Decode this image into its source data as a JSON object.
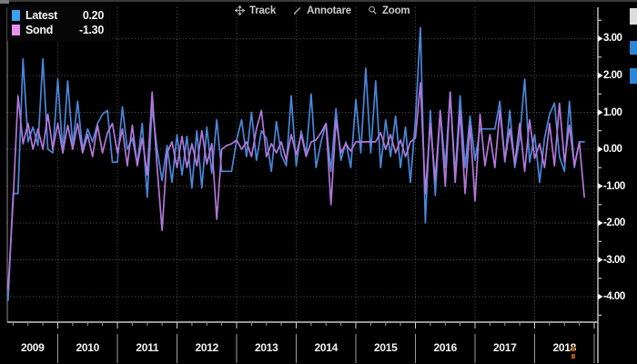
{
  "toolbar": {
    "items": [
      {
        "label": "Track",
        "icon": "move-icon"
      },
      {
        "label": "Annotare",
        "icon": "pencil-icon"
      },
      {
        "label": "Zoom",
        "icon": "magnifier-icon"
      }
    ]
  },
  "legend": {
    "items": [
      {
        "label": "Latest",
        "value": "0.20",
        "color": "#3aa0f2"
      },
      {
        "label": "Sond",
        "value": "-1.30",
        "color": "#e690ef"
      }
    ]
  },
  "colors": {
    "background": "#000000",
    "grid": "#5a5a5a",
    "axis": "#c8c8c8",
    "text": "#ffffff",
    "latest_line": "#4a86d8",
    "sond_line": "#b277d9"
  },
  "chart_data": {
    "type": "line",
    "title": "",
    "xlabel": "",
    "ylabel": "",
    "x_unit": "month",
    "x_start": "2009-03",
    "x_end": "2018-11",
    "start_month_offset": 10,
    "x_tick_labels": [
      "2009",
      "2010",
      "2011",
      "2012",
      "2013",
      "2014",
      "2015",
      "2016",
      "2017",
      "2018"
    ],
    "y_ticks": [
      3,
      2,
      1,
      0,
      -1,
      -2,
      -3,
      -4
    ],
    "y_tick_labels": [
      "3.00",
      "2.00",
      "1.00",
      "0.00",
      "-1.00",
      "-2.00",
      "-3.00",
      "-4.00"
    ],
    "y_minor_ticks": [
      3.5,
      2.5,
      1.5,
      0.5,
      -0.5,
      -1.5,
      -2.5,
      -3.5,
      -4.5
    ],
    "ylim": [
      -4.69,
      3.85
    ],
    "grid": "dotted",
    "legend_position": "top-left",
    "series": [
      {
        "name": "Latest",
        "last_value": 0.2,
        "color": "#4a86d8",
        "values": [
          -4.1,
          -1.2,
          -1.2,
          2.45,
          0.2,
          0.6,
          0.1,
          2.45,
          0.0,
          -0.1,
          1.9,
          -0.1,
          1.85,
          0.1,
          1.3,
          0.0,
          0.55,
          0.2,
          0.7,
          0.95,
          1.05,
          -0.35,
          -0.35,
          1.15,
          0.0,
          0.3,
          -0.4,
          0.7,
          -1.3,
          1.15,
          0.0,
          -0.85,
          0.1,
          -0.9,
          0.4,
          -0.7,
          0.35,
          -1.05,
          0.5,
          -1.05,
          0.6,
          -0.65,
          0.8,
          -0.6,
          -0.6,
          -0.6,
          0.25,
          0.8,
          -0.2,
          1.0,
          -0.3,
          0.5,
          0.3,
          -0.6,
          0.75,
          -0.15,
          -0.45,
          1.45,
          -0.45,
          0.5,
          -0.15,
          1.5,
          -0.5,
          0.2,
          0.7,
          -0.6,
          1.1,
          -0.3,
          0.2,
          -0.5,
          1.35,
          -0.1,
          2.2,
          -0.1,
          1.85,
          -0.5,
          0.8,
          -0.2,
          0.9,
          -0.5,
          0.6,
          -0.9,
          0.8,
          3.3,
          -2.0,
          1.05,
          -1.25,
          1.05,
          -0.5,
          1.55,
          -0.7,
          1.45,
          -0.5,
          0.9,
          -0.3,
          0.55,
          0.55,
          0.55,
          0.55,
          1.3,
          -0.35,
          1.05,
          -0.5,
          0.3,
          1.9,
          -0.35,
          0.4,
          -0.9,
          0.3,
          0.95,
          1.25,
          -0.2,
          -0.6,
          1.3,
          -0.5,
          0.2,
          0.2
        ]
      },
      {
        "name": "Sond",
        "last_value": -1.3,
        "color": "#b277d9",
        "values": [
          -3.8,
          -1.4,
          1.45,
          0.15,
          0.7,
          0.0,
          0.55,
          0.0,
          0.95,
          0.0,
          0.7,
          -0.1,
          0.65,
          0.0,
          0.7,
          -0.1,
          0.4,
          -0.2,
          0.65,
          -0.1,
          0.45,
          0.7,
          -0.1,
          0.55,
          -0.45,
          0.65,
          -0.45,
          0.3,
          -0.7,
          1.55,
          -0.5,
          -2.2,
          -0.1,
          0.2,
          -0.5,
          0.35,
          -0.5,
          0.15,
          -0.45,
          0.5,
          -0.4,
          0.15,
          -1.9,
          0.0,
          0.1,
          0.15,
          0.25,
          0.0,
          0.2,
          -0.2,
          0.55,
          1.05,
          -0.2,
          0.15,
          -0.1,
          0.2,
          -0.3,
          0.4,
          -0.15,
          0.4,
          -0.2,
          0.2,
          0.25,
          0.45,
          0.7,
          -1.5,
          0.8,
          -0.1,
          0.15,
          -0.05,
          0.2,
          0.2,
          0.2,
          0.2,
          0.2,
          0.45,
          0.0,
          0.4,
          -0.1,
          0.25,
          -0.2,
          0.2,
          0.3,
          1.8,
          -1.2,
          0.7,
          -0.85,
          1.05,
          -1.0,
          1.55,
          -0.9,
          1.05,
          -1.2,
          0.65,
          -1.4,
          0.95,
          -0.45,
          0.4,
          -0.5,
          1.05,
          -0.3,
          0.55,
          -0.4,
          0.7,
          -0.6,
          0.8,
          -0.25,
          0.15,
          -0.5,
          0.7,
          -0.45,
          1.25,
          -0.35,
          0.65,
          -0.45,
          0.2,
          -1.3
        ]
      }
    ]
  }
}
